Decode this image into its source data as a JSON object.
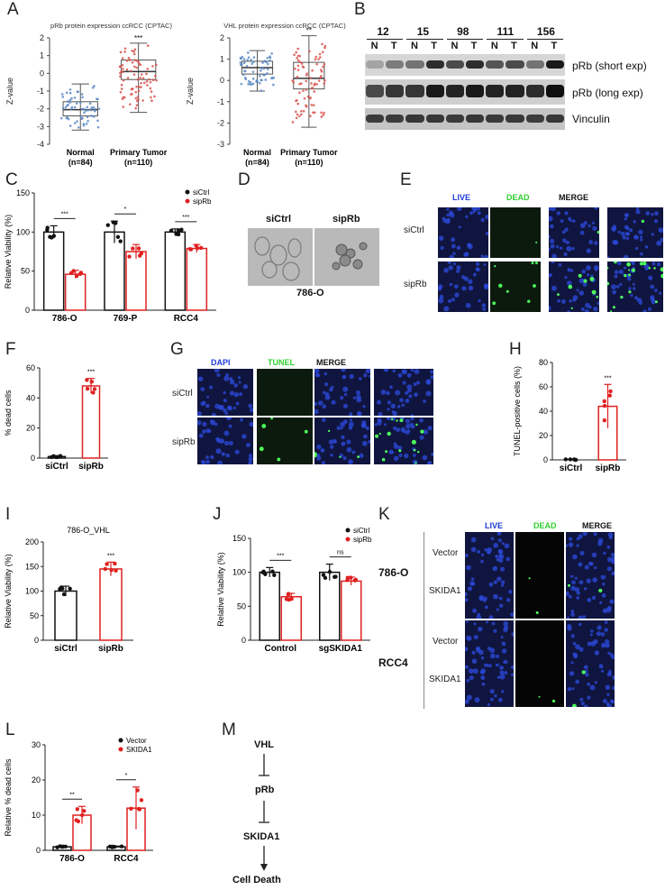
{
  "panel_labels": [
    "A",
    "B",
    "C",
    "D",
    "E",
    "F",
    "G",
    "H",
    "I",
    "J",
    "K",
    "L",
    "M"
  ],
  "panelA": {
    "left": {
      "title": "pRb protein expression ccRCC (CPTAC)",
      "ylabel": "Z-value",
      "yticks": [
        "2",
        "1",
        "0",
        "-1",
        "-2",
        "-3",
        "-4"
      ],
      "groups": [
        {
          "name": "Normal",
          "n": "(n=84)",
          "color": "#5b8ac6",
          "q1": -2.4,
          "median": -2.05,
          "q3": -1.6,
          "whisker_low": -3.2,
          "whisker_high": -0.6
        },
        {
          "name": "Primary Tumor",
          "n": "(n=110)",
          "color": "#d9534f",
          "q1": -0.35,
          "median": 0.1,
          "q3": 0.75,
          "whisker_low": -2.2,
          "whisker_high": 1.7
        }
      ],
      "significance": "***"
    },
    "right": {
      "title": "VHL protein expression ccRCC (CPTAC)",
      "ylabel": "Z-value",
      "yticks": [
        "2",
        "1",
        "0",
        "-1",
        "-2",
        "-3"
      ],
      "groups": [
        {
          "name": "Normal",
          "n": "(n=84)",
          "color": "#5b8ac6",
          "q1": 0.3,
          "median": 0.6,
          "q3": 0.9,
          "whisker_low": -0.5,
          "whisker_high": 1.4
        },
        {
          "name": "Primary Tumor",
          "n": "(n=110)",
          "color": "#d9534f",
          "q1": -0.4,
          "median": 0.1,
          "q3": 0.85,
          "whisker_low": -2.2,
          "whisker_high": 2.1
        }
      ],
      "significance": "**"
    }
  },
  "panelB": {
    "samples": [
      "12",
      "15",
      "98",
      "111",
      "156"
    ],
    "lanes": [
      "N",
      "T"
    ],
    "bands": [
      "pRb (short exp)",
      "pRb (long exp)",
      "Vinculin"
    ]
  },
  "chart_data": [
    {
      "panel": "C",
      "type": "bar",
      "ylabel": "Relative Viability (%)",
      "ylim": [
        0,
        150
      ],
      "yticks": [
        "150",
        "100",
        "50",
        "0"
      ],
      "categories": [
        "786-O",
        "769-P",
        "RCC4"
      ],
      "series": [
        {
          "name": "siCtrl",
          "color": "#111111",
          "values": [
            100,
            100,
            100
          ],
          "err": [
            8,
            14,
            4
          ]
        },
        {
          "name": "sipRb",
          "color": "#e02020",
          "values": [
            46,
            75,
            79
          ],
          "err": [
            5,
            9,
            5
          ]
        }
      ],
      "significance": [
        "***",
        "*",
        "***"
      ]
    },
    {
      "panel": "F",
      "type": "bar",
      "ylabel": "% dead cells",
      "ylim": [
        0,
        60
      ],
      "yticks": [
        "60",
        "40",
        "20",
        "0"
      ],
      "categories": [
        "siCtrl",
        "sipRb"
      ],
      "values": [
        1,
        48
      ],
      "err": [
        0.5,
        5
      ],
      "colors": [
        "#111111",
        "#e02020"
      ],
      "significance": "***"
    },
    {
      "panel": "H",
      "type": "bar",
      "ylabel": "TUNEL-positive cells (%)",
      "ylim": [
        0,
        80
      ],
      "yticks": [
        "80",
        "60",
        "40",
        "20",
        "0"
      ],
      "categories": [
        "siCtrl",
        "sipRb"
      ],
      "values": [
        0,
        44
      ],
      "err": [
        0.5,
        18
      ],
      "colors": [
        "#111111",
        "#e02020"
      ],
      "significance": "***"
    },
    {
      "panel": "I",
      "type": "bar",
      "title": "786-O_VHL",
      "ylabel": "Relative Viability (%)",
      "ylim": [
        0,
        200
      ],
      "yticks": [
        "200",
        "150",
        "100",
        "50",
        "0"
      ],
      "categories": [
        "siCtrl",
        "sipRb"
      ],
      "values": [
        100,
        145
      ],
      "err": [
        10,
        14
      ],
      "colors": [
        "#111111",
        "#e02020"
      ],
      "significance": "***"
    },
    {
      "panel": "J",
      "type": "bar",
      "ylabel": "Relative Viability (%)",
      "ylim": [
        0,
        150
      ],
      "yticks": [
        "150",
        "100",
        "50",
        "0"
      ],
      "categories": [
        "Control",
        "sgSKIDA1"
      ],
      "series": [
        {
          "name": "siCtrl",
          "color": "#111111",
          "values": [
            100,
            100
          ],
          "err": [
            7,
            12
          ]
        },
        {
          "name": "sipRb",
          "color": "#e02020",
          "values": [
            64,
            87
          ],
          "err": [
            5,
            6
          ]
        }
      ],
      "significance": [
        "***",
        "ns"
      ]
    },
    {
      "panel": "L",
      "type": "bar",
      "ylabel": "Relative % dead cells",
      "ylim": [
        0,
        30
      ],
      "yticks": [
        "30",
        "20",
        "10",
        "0"
      ],
      "categories": [
        "786-O",
        "RCC4"
      ],
      "series": [
        {
          "name": "Vector",
          "color": "#111111",
          "values": [
            1,
            1
          ],
          "err": [
            0.2,
            0.2
          ]
        },
        {
          "name": "SKIDA1",
          "color": "#e02020",
          "values": [
            10,
            12
          ],
          "err": [
            2.5,
            6
          ]
        }
      ],
      "significance": [
        "**",
        "*"
      ]
    }
  ],
  "panelD": {
    "labels": [
      "siCtrl",
      "sipRb"
    ],
    "cell_line": "786-O"
  },
  "panelE": {
    "headers": [
      "LIVE",
      "DEAD",
      "MERGE"
    ],
    "rows": [
      "siCtrl",
      "sipRb"
    ],
    "header_colors": [
      "#1f3bd6",
      "#2fcf2f",
      "#111111"
    ]
  },
  "panelG": {
    "headers": [
      "DAPI",
      "TUNEL",
      "MERGE"
    ],
    "rows": [
      "siCtrl",
      "sipRb"
    ],
    "header_colors": [
      "#1f3bd6",
      "#2fcf2f",
      "#111111"
    ]
  },
  "panelK": {
    "headers": [
      "LIVE",
      "DEAD",
      "MERGE"
    ],
    "groups": [
      {
        "line": "786-O",
        "rows": [
          "Vector",
          "SKIDA1"
        ]
      },
      {
        "line": "RCC4",
        "rows": [
          "Vector",
          "SKIDA1"
        ]
      }
    ],
    "header_colors": [
      "#1f3bd6",
      "#2fcf2f",
      "#111111"
    ]
  },
  "panelM": {
    "nodes": [
      "VHL",
      "pRb",
      "SKIDA1",
      "Cell Death"
    ]
  }
}
